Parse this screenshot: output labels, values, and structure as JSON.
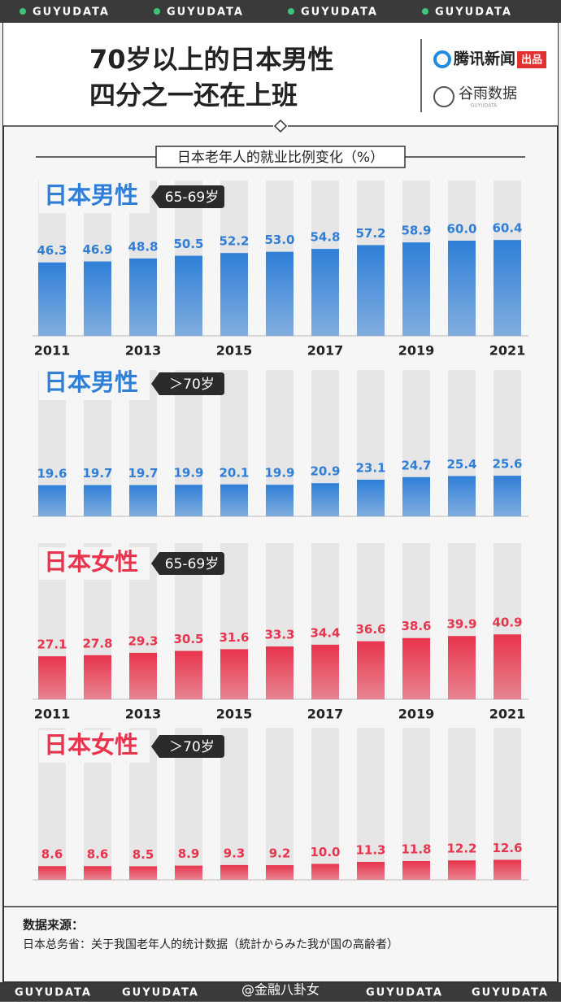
{
  "banner": "GUYUDATA",
  "title": [
    "70岁以上的日本男性",
    "四分之一还在上班"
  ],
  "brand": {
    "tencent": "腾讯新闻",
    "badge": "出品",
    "guyu": "谷雨数据",
    "guyu_sub": "GUYUDATA"
  },
  "subtitle": "日本老年人的就业比例变化（%）",
  "chart_data": [
    {
      "type": "bar",
      "title": "日本男性",
      "tag": "65-69岁",
      "color": "#2f7fd8",
      "categories": [
        "2011",
        null,
        "2013",
        null,
        "2015",
        null,
        "2017",
        null,
        "2019",
        null,
        "2021"
      ],
      "values": [
        46.3,
        46.9,
        48.8,
        50.5,
        52.2,
        53.0,
        54.8,
        57.2,
        58.9,
        60.0,
        60.4
      ],
      "value_labels": [
        "46.3",
        "46.9",
        "48.8",
        "50.5",
        "52.2",
        "53.0",
        "54.8",
        "57.2",
        "58.9",
        "60.0",
        "60.4"
      ]
    },
    {
      "type": "bar",
      "title": "日本男性",
      "tag": "＞70岁",
      "color": "#2f7fd8",
      "categories": [
        null,
        null,
        null,
        null,
        null,
        null,
        null,
        null,
        null,
        null,
        null
      ],
      "values": [
        19.6,
        19.7,
        19.7,
        19.9,
        20.1,
        19.9,
        20.9,
        23.1,
        24.7,
        25.4,
        25.6
      ],
      "value_labels": [
        "19.6",
        "19.7",
        "19.7",
        "19.9",
        "20.1",
        "19.9",
        "20.9",
        "23.1",
        "24.7",
        "25.4",
        "25.6"
      ]
    },
    {
      "type": "bar",
      "title": "日本女性",
      "tag": "65-69岁",
      "color": "#e8344c",
      "categories": [
        "2011",
        null,
        "2013",
        null,
        "2015",
        null,
        "2017",
        null,
        "2019",
        null,
        "2021"
      ],
      "values": [
        27.1,
        27.8,
        29.3,
        30.5,
        31.6,
        33.3,
        34.4,
        36.6,
        38.6,
        39.9,
        40.9
      ],
      "value_labels": [
        "27.1",
        "27.8",
        "29.3",
        "30.5",
        "31.6",
        "33.3",
        "34.4",
        "36.6",
        "38.6",
        "39.9",
        "40.9"
      ]
    },
    {
      "type": "bar",
      "title": "日本女性",
      "tag": "＞70岁",
      "color": "#e8344c",
      "categories": [
        null,
        null,
        null,
        null,
        null,
        null,
        null,
        null,
        null,
        null,
        null
      ],
      "values": [
        8.6,
        8.6,
        8.5,
        8.9,
        9.3,
        9.2,
        10.0,
        11.3,
        11.8,
        12.2,
        12.6
      ],
      "value_labels": [
        "8.6",
        "8.6",
        "8.5",
        "8.9",
        "9.3",
        "9.2",
        "10.0",
        "11.3",
        "11.8",
        "12.2",
        "12.6"
      ]
    }
  ],
  "source_title": "数据来源：",
  "source": "日本总务省：关于我国老年人的统计数据（統計からみた我が国の高齢者）",
  "watermark": "@金融八卦女"
}
